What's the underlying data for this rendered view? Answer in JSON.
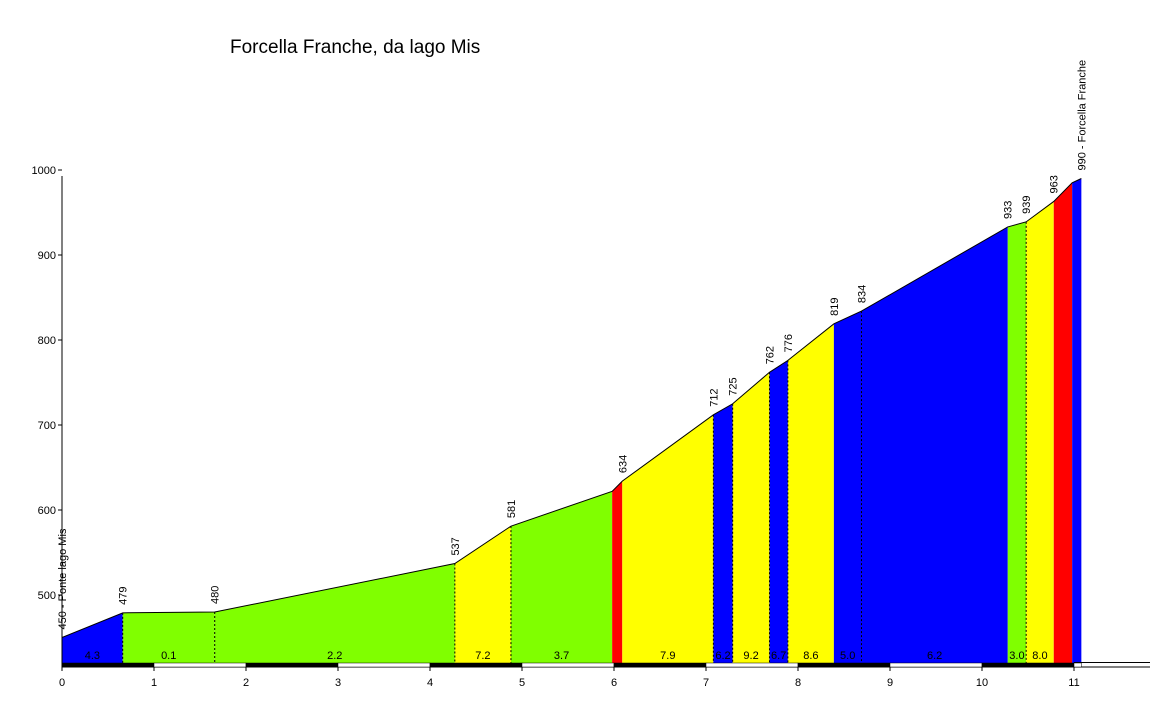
{
  "chart_data": {
    "type": "area",
    "title": "Forcella Franche, da lago Mis",
    "xlabel": "",
    "ylabel": "",
    "xlim": [
      0,
      11.8
    ],
    "ylim": [
      420,
      1000
    ],
    "x_ticks": [
      0,
      1,
      2,
      3,
      4,
      5,
      6,
      7,
      8,
      9,
      10,
      11
    ],
    "y_ticks": [
      500,
      600,
      700,
      800,
      900,
      1000
    ],
    "grid": false,
    "profile": [
      {
        "x": 0.0,
        "y": 450
      },
      {
        "x": 0.66,
        "y": 479
      },
      {
        "x": 1.66,
        "y": 480
      },
      {
        "x": 4.27,
        "y": 537
      },
      {
        "x": 4.88,
        "y": 581
      },
      {
        "x": 5.98,
        "y": 622
      },
      {
        "x": 6.09,
        "y": 634
      },
      {
        "x": 7.08,
        "y": 712
      },
      {
        "x": 7.29,
        "y": 725
      },
      {
        "x": 7.69,
        "y": 762
      },
      {
        "x": 7.89,
        "y": 776
      },
      {
        "x": 8.39,
        "y": 819
      },
      {
        "x": 8.69,
        "y": 834
      },
      {
        "x": 10.28,
        "y": 933
      },
      {
        "x": 10.48,
        "y": 939
      },
      {
        "x": 10.78,
        "y": 963
      },
      {
        "x": 10.98,
        "y": 985
      },
      {
        "x": 11.08,
        "y": 990
      }
    ],
    "segments": [
      {
        "x0": 0.0,
        "x1": 0.66,
        "grade": "4.3",
        "color": "#0000ff"
      },
      {
        "x0": 0.66,
        "x1": 1.66,
        "grade": "0.1",
        "color": "#80ff00"
      },
      {
        "x0": 1.66,
        "x1": 4.27,
        "grade": "2.2",
        "color": "#80ff00"
      },
      {
        "x0": 4.27,
        "x1": 4.88,
        "grade": "7.2",
        "color": "#ffff00"
      },
      {
        "x0": 4.88,
        "x1": 5.98,
        "grade": "3.7",
        "color": "#80ff00"
      },
      {
        "x0": 5.98,
        "x1": 6.09,
        "grade": "",
        "color": "#ff0000"
      },
      {
        "x0": 6.09,
        "x1": 7.08,
        "grade": "7.9",
        "color": "#ffff00"
      },
      {
        "x0": 7.08,
        "x1": 7.29,
        "grade": "6.2",
        "color": "#0000ff"
      },
      {
        "x0": 7.29,
        "x1": 7.69,
        "grade": "9.2",
        "color": "#ffff00"
      },
      {
        "x0": 7.69,
        "x1": 7.89,
        "grade": "6.7",
        "color": "#0000ff"
      },
      {
        "x0": 7.89,
        "x1": 8.39,
        "grade": "8.6",
        "color": "#ffff00"
      },
      {
        "x0": 8.39,
        "x1": 8.69,
        "grade": "5.0",
        "color": "#0000ff"
      },
      {
        "x0": 8.69,
        "x1": 10.28,
        "grade": "6.2",
        "color": "#0000ff"
      },
      {
        "x0": 10.28,
        "x1": 10.48,
        "grade": "3.0",
        "color": "#80ff00"
      },
      {
        "x0": 10.48,
        "x1": 10.78,
        "grade": "8.0",
        "color": "#ffff00"
      },
      {
        "x0": 10.78,
        "x1": 10.98,
        "grade": "",
        "color": "#ff0000"
      },
      {
        "x0": 10.98,
        "x1": 11.08,
        "grade": "",
        "color": "#0000ff"
      }
    ],
    "elevation_labels": [
      {
        "x": 0.0,
        "y": 450,
        "text": "450 - Ponte lago Mis"
      },
      {
        "x": 0.66,
        "y": 479,
        "text": "479"
      },
      {
        "x": 1.66,
        "y": 480,
        "text": "480"
      },
      {
        "x": 4.27,
        "y": 537,
        "text": "537"
      },
      {
        "x": 4.88,
        "y": 581,
        "text": "581"
      },
      {
        "x": 6.09,
        "y": 634,
        "text": "634"
      },
      {
        "x": 7.08,
        "y": 712,
        "text": "712"
      },
      {
        "x": 7.29,
        "y": 725,
        "text": "725"
      },
      {
        "x": 7.69,
        "y": 762,
        "text": "762"
      },
      {
        "x": 7.89,
        "y": 776,
        "text": "776"
      },
      {
        "x": 8.39,
        "y": 819,
        "text": "819"
      },
      {
        "x": 8.69,
        "y": 834,
        "text": "834"
      },
      {
        "x": 10.28,
        "y": 933,
        "text": "933"
      },
      {
        "x": 10.48,
        "y": 939,
        "text": "939"
      },
      {
        "x": 10.78,
        "y": 963,
        "text": "963"
      },
      {
        "x": 11.08,
        "y": 990,
        "text": "990 - Forcella Franche"
      }
    ],
    "dashed_dividers": [
      0.66,
      1.66,
      4.27,
      4.88,
      7.08,
      7.29,
      7.69,
      7.89,
      8.69,
      10.48
    ]
  }
}
